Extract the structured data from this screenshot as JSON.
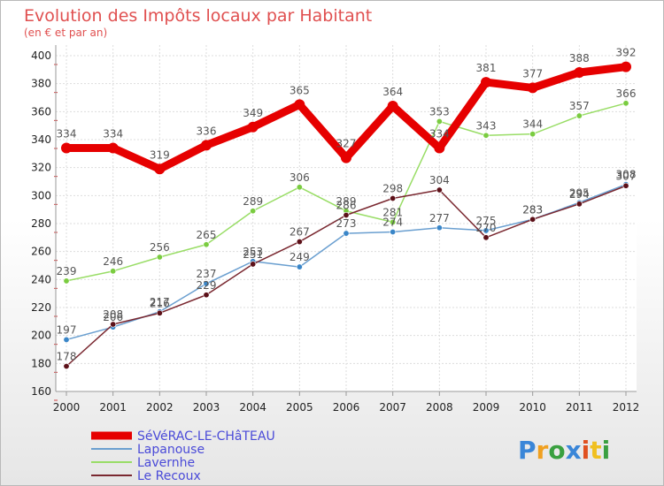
{
  "chart_data": {
    "type": "line",
    "title": "Evolution des Impôts locaux par Habitant",
    "subtitle": "(en € et par an)",
    "xlabel": "",
    "ylabel": "",
    "ylim": [
      160,
      400
    ],
    "yticks": [
      160,
      180,
      200,
      220,
      240,
      260,
      280,
      300,
      320,
      340,
      360,
      380,
      400
    ],
    "x": [
      "2000",
      "2001",
      "2002",
      "2003",
      "2004",
      "2005",
      "2006",
      "2007",
      "2008",
      "2009",
      "2010",
      "2011",
      "2012"
    ],
    "grid": true,
    "legend_position": "bottom-left",
    "series": [
      {
        "name": "SéVéRAC-LE-CHâTEAU",
        "color": "#e60000",
        "values": [
          334,
          334,
          319,
          336,
          349,
          365,
          327,
          364,
          334,
          381,
          377,
          388,
          392
        ],
        "labels": [
          "334",
          "334",
          "319",
          "336",
          "349",
          "365",
          "327",
          "364",
          "334",
          "381",
          "377",
          "388",
          "392"
        ]
      },
      {
        "name": "Lapanouse",
        "color": "#6a9fd0",
        "marker_color": "#3a86c8",
        "values": [
          197,
          206,
          217,
          237,
          253,
          249,
          273,
          274,
          277,
          275,
          283,
          295,
          308
        ],
        "labels": [
          "197",
          "206",
          "217",
          "237",
          "253",
          "249",
          "273",
          "274",
          "277",
          "275",
          "283",
          "295",
          "308"
        ]
      },
      {
        "name": "Lavernhe",
        "color": "#99dd66",
        "marker_color": "#7acc40",
        "values": [
          239,
          246,
          256,
          265,
          289,
          306,
          289,
          281,
          353,
          343,
          344,
          357,
          366
        ],
        "labels": [
          "239",
          "246",
          "256",
          "265",
          "289",
          "306",
          "289",
          "281",
          "353",
          "343",
          "344",
          "357",
          "366"
        ]
      },
      {
        "name": "Le Recoux",
        "color": "#7a2830",
        "marker_color": "#5c1018",
        "values": [
          178,
          208,
          216,
          229,
          251,
          267,
          286,
          298,
          304,
          270,
          283,
          294,
          307
        ],
        "labels": [
          "178",
          "208",
          "216",
          "229",
          "251",
          "267",
          "286",
          "298",
          "304",
          "270",
          "283",
          "294",
          "307"
        ]
      }
    ]
  },
  "brand": {
    "letters": [
      "P",
      "r",
      "o",
      "x",
      "i",
      "t",
      "i"
    ],
    "colors": [
      "#3a86d8",
      "#f0a020",
      "#3aa040",
      "#3a86d8",
      "#e05020",
      "#f0c020",
      "#3aa040"
    ]
  }
}
